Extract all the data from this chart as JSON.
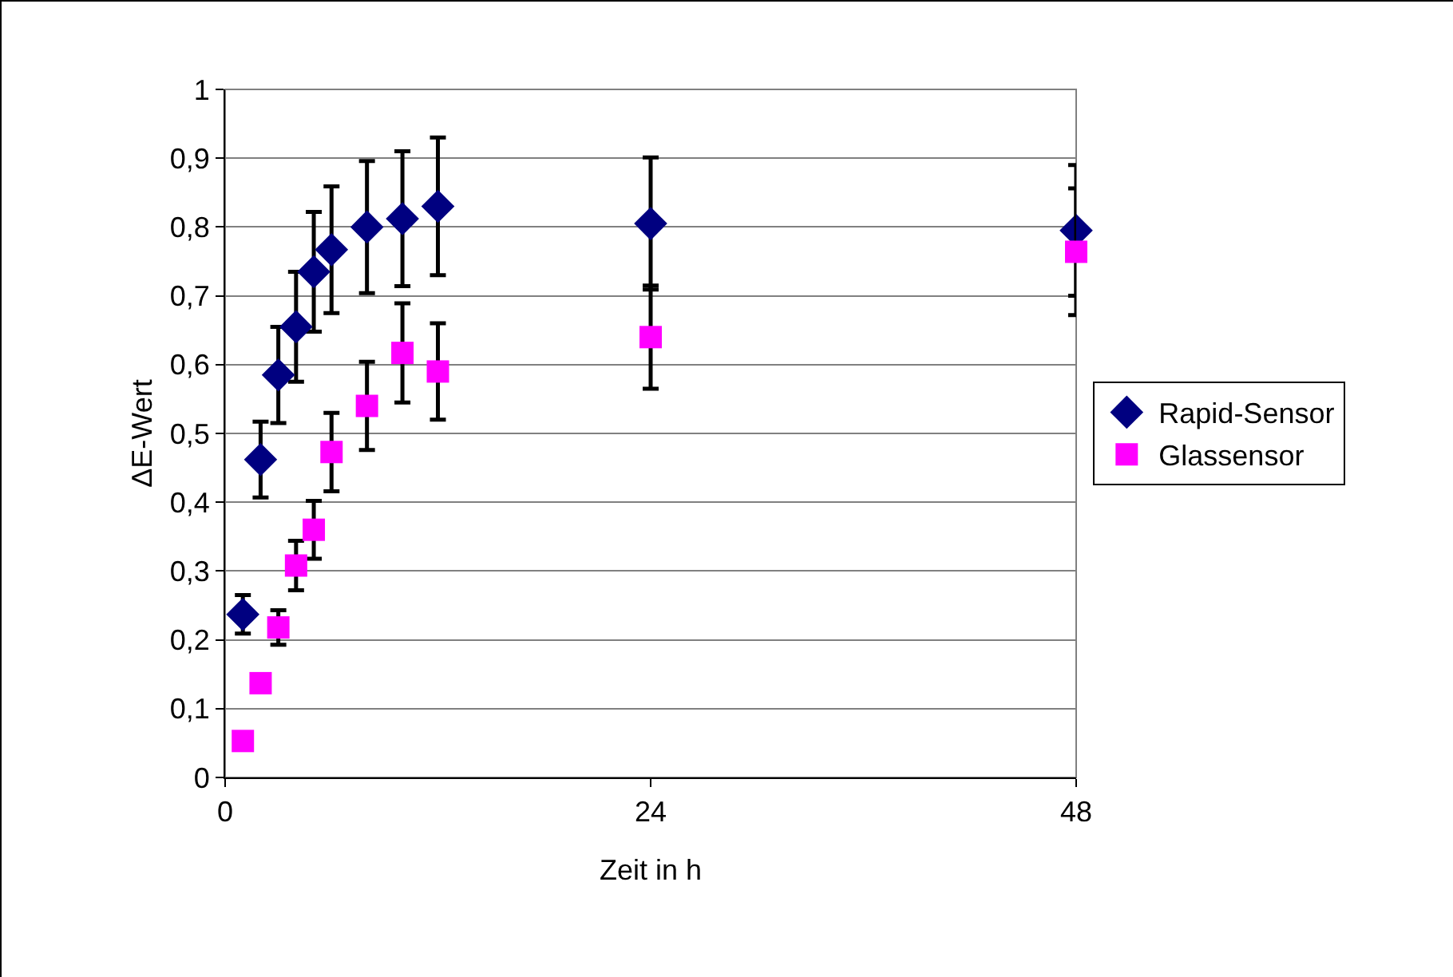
{
  "chart_data": {
    "type": "scatter",
    "xlabel": "Zeit in h",
    "ylabel": "ΔE-Wert",
    "x": [
      1,
      2,
      3,
      4,
      5,
      6,
      8,
      10,
      12,
      24,
      48
    ],
    "series": [
      {
        "name": "Rapid-Sensor",
        "color": "#000080",
        "marker": "diamond",
        "values": [
          0.237,
          0.462,
          0.585,
          0.655,
          0.735,
          0.767,
          0.8,
          0.812,
          0.83,
          0.805,
          0.795
        ],
        "errors": [
          0.028,
          0.055,
          0.07,
          0.08,
          0.087,
          0.092,
          0.096,
          0.098,
          0.1,
          0.096,
          0.095
        ]
      },
      {
        "name": "Glassensor",
        "color": "#ff00ff",
        "marker": "square",
        "values": [
          0.053,
          0.137,
          0.218,
          0.308,
          0.36,
          0.473,
          0.54,
          0.617,
          0.59,
          0.64,
          0.764
        ],
        "errors": [
          null,
          null,
          0.025,
          0.036,
          0.042,
          0.057,
          0.064,
          0.072,
          0.07,
          0.075,
          0.092
        ]
      }
    ],
    "xlim": [
      0,
      48
    ],
    "xticks": [
      0,
      24,
      48
    ],
    "ylim": [
      0,
      1
    ],
    "yticks": [
      0,
      {
        "value": 0.1,
        "label": "0,1"
      },
      {
        "value": 0.2,
        "label": "0,2"
      },
      {
        "value": 0.3,
        "label": "0,3"
      },
      {
        "value": 0.4,
        "label": "0,4"
      },
      {
        "value": 0.5,
        "label": "0,5"
      },
      {
        "value": 0.6,
        "label": "0,6"
      },
      {
        "value": 0.7,
        "label": "0,7"
      },
      {
        "value": 0.8,
        "label": "0,8"
      },
      {
        "value": 0.9,
        "label": "0,9"
      },
      1
    ],
    "grid": "y",
    "legend": "right"
  }
}
